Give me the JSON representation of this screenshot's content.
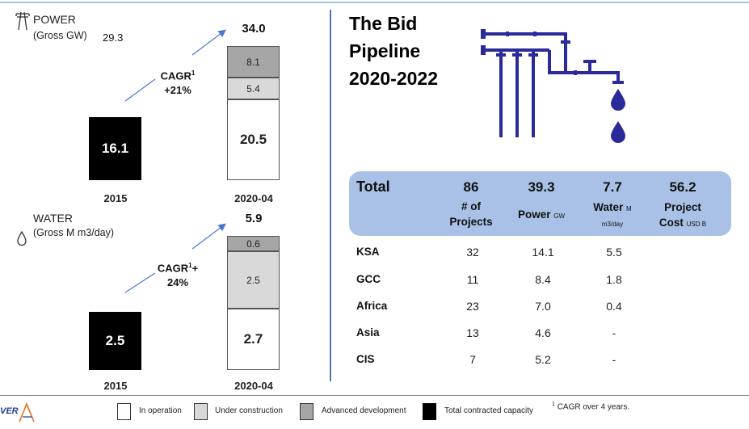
{
  "power": {
    "title": "POWER",
    "subtitle": "(Gross GW)",
    "floating_value": "29.3",
    "cagr_line1": "CAGR",
    "cagr_sup": "1",
    "cagr_line2": "+21%",
    "total_2020": "34.0",
    "bar_2015": "16.1",
    "seg_operation": "20.5",
    "seg_construction": "5.4",
    "seg_advanced": "8.1",
    "year_a": "2015",
    "year_b": "2020-04"
  },
  "water": {
    "title": "WATER",
    "subtitle": "(Gross M m3/day)",
    "cagr_line1": "CAGR",
    "cagr_sup": "1",
    "cagr_suffix": "+",
    "cagr_line2": "24%",
    "total_2020": "5.9",
    "bar_2015": "2.5",
    "seg_operation": "2.7",
    "seg_construction": "2.5",
    "seg_advanced": "0.6",
    "year_a": "2015",
    "year_b": "2020-04"
  },
  "chart_data": [
    {
      "type": "bar",
      "title": "POWER",
      "subtitle": "(Gross GW)",
      "categories": [
        "2015",
        "2020-04"
      ],
      "stacked": true,
      "series": [
        {
          "name": "Total contracted capacity",
          "values": [
            16.1,
            0
          ]
        },
        {
          "name": "In operation",
          "values": [
            0,
            20.5
          ]
        },
        {
          "name": "Under construction",
          "values": [
            0,
            5.4
          ]
        },
        {
          "name": "Advanced development",
          "values": [
            0,
            8.1
          ]
        }
      ],
      "totals": [
        16.1,
        34.0
      ],
      "annotation": "CAGR1 +21%"
    },
    {
      "type": "bar",
      "title": "WATER",
      "subtitle": "(Gross M m3/day)",
      "categories": [
        "2015",
        "2020-04"
      ],
      "stacked": true,
      "series": [
        {
          "name": "Total contracted capacity",
          "values": [
            2.5,
            0
          ]
        },
        {
          "name": "In operation",
          "values": [
            0,
            2.7
          ]
        },
        {
          "name": "Under construction",
          "values": [
            0,
            2.5
          ]
        },
        {
          "name": "Advanced development",
          "values": [
            0,
            0.6
          ]
        }
      ],
      "totals": [
        2.5,
        5.9
      ],
      "annotation": "CAGR1+ 24%"
    },
    {
      "type": "table",
      "title": "The Bid Pipeline 2020-2022",
      "columns": [
        "Total",
        "# of Projects",
        "Power GW",
        "Water M m3/day",
        "Project Cost USD B"
      ],
      "totals": [
        "86",
        "39.3",
        "7.7",
        "56.2"
      ],
      "rows": [
        [
          "KSA",
          "32",
          "14.1",
          "5.5"
        ],
        [
          "GCC",
          "11",
          "8.4",
          "1.8"
        ],
        [
          "Africa",
          "23",
          "7.0",
          "0.4"
        ],
        [
          "Asia",
          "13",
          "4.6",
          "-"
        ],
        [
          "CIS",
          "7",
          "5.2",
          "-"
        ]
      ]
    }
  ],
  "pipeline": {
    "title_l1": "The Bid",
    "title_l2": "Pipeline",
    "title_l3": "2020-2022",
    "head": {
      "total_label": "Total",
      "projects_num": "86",
      "projects_l1": "# of",
      "projects_l2": "Projects",
      "power_num": "39.3",
      "power_label": "Power",
      "power_unit": "GW",
      "water_num": "7.7",
      "water_label": "Water",
      "water_unit_a": "M",
      "water_unit_b": "m3/day",
      "cost_num": "56.2",
      "cost_l1": "Project",
      "cost_label": "Cost",
      "cost_unit": "USD B"
    },
    "rows": [
      {
        "region": "KSA",
        "projects": "32",
        "power": "14.1",
        "water": "5.5"
      },
      {
        "region": "GCC",
        "projects": "11",
        "power": "8.4",
        "water": "1.8"
      },
      {
        "region": "Africa",
        "projects": "23",
        "power": "7.0",
        "water": "0.4"
      },
      {
        "region": "Asia",
        "projects": "13",
        "power": "4.6",
        "water": "-"
      },
      {
        "region": "CIS",
        "projects": "7",
        "power": "5.2",
        "water": "-"
      }
    ],
    "pipe_color": "#2a2a9a"
  },
  "legend": {
    "in_operation": "In operation",
    "under_construction": "Under construction",
    "advanced_development": "Advanced development",
    "total_contracted": "Total contracted capacity",
    "footnote_sup": "1",
    "footnote": "CAGR over 4 years."
  },
  "logo_text": "VER",
  "icons": [
    "power-pylon-icon",
    "water-drop-icon",
    "pipeline-illustration"
  ]
}
